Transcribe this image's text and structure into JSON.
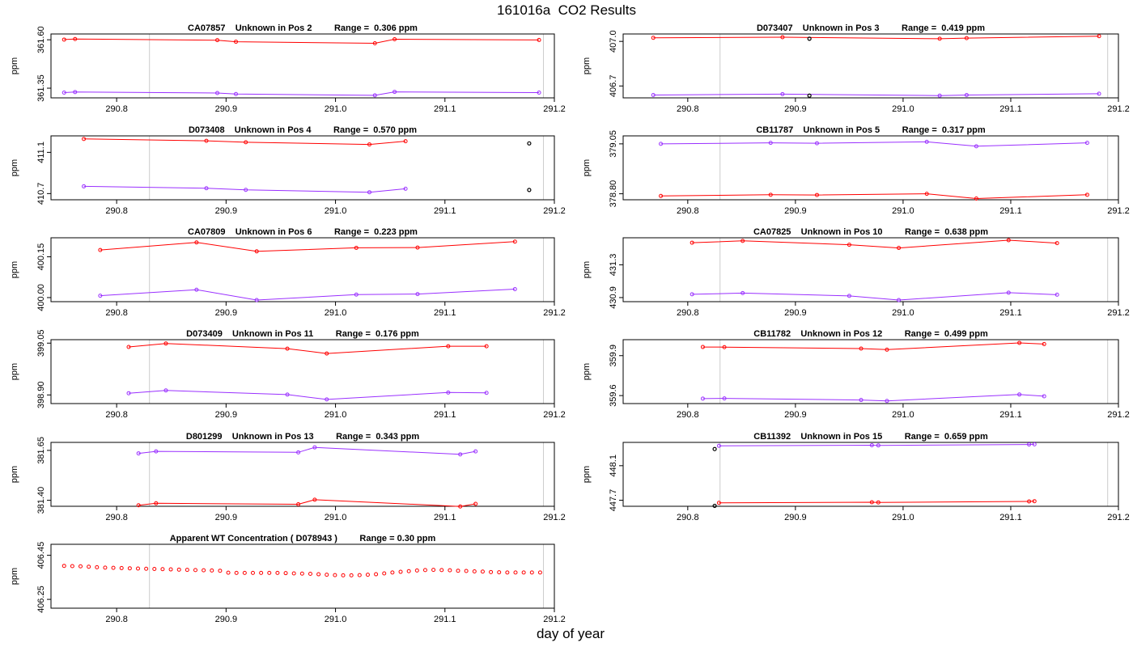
{
  "page": {
    "title": "161016a  CO2 Results",
    "xlabel": "day of year"
  },
  "colors": {
    "series_red": "#ff0000",
    "series_purple": "#9a30ff",
    "reference_line": "#cccccc",
    "outlier_point": "#000000",
    "frame": "#000000"
  },
  "chart_data": [
    {
      "type": "line",
      "title": "CA07857    Unknown in Pos 2         Range =  0.306 ppm",
      "ylabel": "ppm",
      "xlim": [
        290.74,
        291.2
      ],
      "ylim": [
        361.3,
        361.63
      ],
      "xticks": [
        "290.8",
        "290.9",
        "291.0",
        "291.1",
        "291.2"
      ],
      "yticks": [
        "361.35",
        "361.60"
      ],
      "vlines": [
        290.83,
        291.19
      ],
      "series": [
        {
          "name": "high",
          "color": "red",
          "x": [
            290.752,
            290.762,
            290.892,
            290.909,
            291.036,
            291.054,
            291.186
          ],
          "y": [
            361.601,
            361.604,
            361.598,
            361.59,
            361.582,
            361.603,
            361.599
          ]
        },
        {
          "name": "low",
          "color": "purple",
          "x": [
            290.752,
            290.762,
            290.892,
            290.909,
            291.036,
            291.054,
            291.186
          ],
          "y": [
            361.327,
            361.33,
            361.325,
            361.32,
            361.313,
            361.331,
            361.327
          ]
        }
      ],
      "outliers": []
    },
    {
      "type": "line",
      "title": "D073407    Unknown in Pos 3         Range =  0.419 ppm",
      "ylabel": "ppm",
      "xlim": [
        290.74,
        291.2
      ],
      "ylim": [
        406.62,
        407.05
      ],
      "xticks": [
        "290.8",
        "290.9",
        "291.0",
        "291.1",
        "291.2"
      ],
      "yticks": [
        "406.7",
        "407.0"
      ],
      "vlines": [
        290.83,
        291.19
      ],
      "series": [
        {
          "name": "high",
          "color": "red",
          "x": [
            290.768,
            290.888,
            291.034,
            291.059,
            291.182
          ],
          "y": [
            407.024,
            407.028,
            407.018,
            407.022,
            407.035
          ]
        },
        {
          "name": "low",
          "color": "purple",
          "x": [
            290.768,
            290.888,
            291.034,
            291.059,
            291.182
          ],
          "y": [
            406.639,
            406.645,
            406.635,
            406.639,
            406.648
          ]
        }
      ],
      "outliers": [
        {
          "x": 290.913,
          "y": 407.018
        },
        {
          "x": 290.913,
          "y": 406.635
        }
      ]
    },
    {
      "type": "line",
      "title": "D073408    Unknown in Pos 4         Range =  0.570 ppm",
      "ylabel": "ppm",
      "xlim": [
        290.74,
        291.2
      ],
      "ylim": [
        410.64,
        411.26
      ],
      "xticks": [
        "290.8",
        "290.9",
        "291.0",
        "291.1",
        "291.2"
      ],
      "yticks": [
        "410.7",
        "411.1"
      ],
      "vlines": [
        290.83,
        291.19
      ],
      "series": [
        {
          "name": "high",
          "color": "red",
          "x": [
            290.77,
            290.882,
            290.918,
            291.031,
            291.064
          ],
          "y": [
            411.23,
            411.212,
            411.198,
            411.177,
            411.208
          ]
        },
        {
          "name": "low",
          "color": "purple",
          "x": [
            290.77,
            290.882,
            290.918,
            291.031,
            291.064
          ],
          "y": [
            410.77,
            410.752,
            410.736,
            410.713,
            410.747
          ]
        }
      ],
      "outliers": [
        {
          "x": 291.177,
          "y": 411.187
        },
        {
          "x": 291.177,
          "y": 410.735
        }
      ]
    },
    {
      "type": "line",
      "title": "CB11787    Unknown in Pos 5         Range =  0.317 ppm",
      "ylabel": "ppm",
      "xlim": [
        290.74,
        291.2
      ],
      "ylim": [
        378.77,
        379.09
      ],
      "xticks": [
        "290.8",
        "290.9",
        "291.0",
        "291.1",
        "291.2"
      ],
      "yticks": [
        "378.80",
        "379.05"
      ],
      "vlines": [
        290.83,
        291.19
      ],
      "series": [
        {
          "name": "high",
          "color": "purple",
          "x": [
            290.775,
            290.877,
            290.92,
            291.022,
            291.068,
            291.171
          ],
          "y": [
            379.05,
            379.055,
            379.053,
            379.06,
            379.038,
            379.055
          ]
        },
        {
          "name": "low",
          "color": "red",
          "x": [
            290.775,
            290.877,
            290.92,
            291.022,
            291.068,
            291.171
          ],
          "y": [
            378.789,
            378.795,
            378.794,
            378.8,
            378.776,
            378.795
          ]
        }
      ],
      "outliers": []
    },
    {
      "type": "line",
      "title": "CA07809    Unknown in Pos 6         Range =  0.223 ppm",
      "ylabel": "ppm",
      "xlim": [
        290.74,
        291.2
      ],
      "ylim": [
        399.985,
        400.22
      ],
      "xticks": [
        "290.8",
        "290.9",
        "291.0",
        "291.1",
        "291.2"
      ],
      "yticks": [
        "400.00",
        "400.15"
      ],
      "vlines": [
        290.83,
        291.19
      ],
      "series": [
        {
          "name": "high",
          "color": "red",
          "x": [
            290.785,
            290.873,
            290.928,
            291.019,
            291.075,
            291.164
          ],
          "y": [
            400.175,
            400.203,
            400.17,
            400.183,
            400.184,
            400.206
          ]
        },
        {
          "name": "low",
          "color": "purple",
          "x": [
            290.785,
            290.873,
            290.928,
            291.019,
            291.075,
            291.164
          ],
          "y": [
            400.007,
            400.029,
            399.991,
            400.011,
            400.013,
            400.031
          ]
        }
      ],
      "outliers": []
    },
    {
      "type": "line",
      "title": "CA07825    Unknown in Pos 10         Range =  0.638 ppm",
      "ylabel": "ppm",
      "xlim": [
        290.74,
        291.2
      ],
      "ylim": [
        430.85,
        431.63
      ],
      "xticks": [
        "290.8",
        "290.9",
        "291.0",
        "291.1",
        "291.2"
      ],
      "yticks": [
        "430.9",
        "431.3"
      ],
      "vlines": [
        290.83,
        291.19
      ],
      "series": [
        {
          "name": "high",
          "color": "red",
          "x": [
            290.804,
            290.851,
            290.95,
            290.996,
            291.098,
            291.143
          ],
          "y": [
            431.57,
            431.592,
            431.545,
            431.506,
            431.6,
            431.565
          ]
        },
        {
          "name": "low",
          "color": "purple",
          "x": [
            290.804,
            290.851,
            290.95,
            290.996,
            291.098,
            291.143
          ],
          "y": [
            430.94,
            430.955,
            430.92,
            430.87,
            430.96,
            430.935
          ]
        }
      ],
      "outliers": []
    },
    {
      "type": "line",
      "title": "D073409    Unknown in Pos 11         Range =  0.176 ppm",
      "ylabel": "ppm",
      "xlim": [
        290.74,
        291.2
      ],
      "ylim": [
        398.875,
        399.06
      ],
      "xticks": [
        "290.8",
        "290.9",
        "291.0",
        "291.1",
        "291.2"
      ],
      "yticks": [
        "398.90",
        "399.05"
      ],
      "vlines": [
        290.83,
        291.19
      ],
      "series": [
        {
          "name": "high",
          "color": "red",
          "x": [
            290.811,
            290.845,
            290.956,
            290.992,
            291.103,
            291.138
          ],
          "y": [
            399.039,
            399.049,
            399.034,
            399.02,
            399.041,
            399.041
          ]
        },
        {
          "name": "low",
          "color": "purple",
          "x": [
            290.811,
            290.845,
            290.956,
            290.992,
            291.103,
            291.138
          ],
          "y": [
            398.905,
            398.913,
            398.901,
            398.887,
            398.907,
            398.906
          ]
        }
      ],
      "outliers": []
    },
    {
      "type": "line",
      "title": "CB11782    Unknown in Pos 12         Range =  0.499 ppm",
      "ylabel": "ppm",
      "xlim": [
        290.74,
        291.2
      ],
      "ylim": [
        359.54,
        360.02
      ],
      "xticks": [
        "290.8",
        "290.9",
        "291.0",
        "291.1",
        "291.2"
      ],
      "yticks": [
        "359.6",
        "359.9"
      ],
      "vlines": [
        290.83,
        291.19
      ],
      "series": [
        {
          "name": "high",
          "color": "red",
          "x": [
            290.814,
            290.834,
            290.961,
            290.985,
            291.108,
            291.131
          ],
          "y": [
            359.965,
            359.964,
            359.953,
            359.945,
            359.996,
            359.987
          ]
        },
        {
          "name": "low",
          "color": "purple",
          "x": [
            290.814,
            290.834,
            290.961,
            290.985,
            291.108,
            291.131
          ],
          "y": [
            359.577,
            359.579,
            359.567,
            359.56,
            359.608,
            359.595
          ]
        }
      ],
      "outliers": []
    },
    {
      "type": "line",
      "title": "D801299    Unknown in Pos 13         Range =  0.343 ppm",
      "ylabel": "ppm",
      "xlim": [
        290.74,
        291.2
      ],
      "ylim": [
        381.37,
        381.69
      ],
      "xticks": [
        "290.8",
        "290.9",
        "291.0",
        "291.1",
        "291.2"
      ],
      "yticks": [
        "381.40",
        "381.65"
      ],
      "vlines": [
        290.83,
        291.19
      ],
      "series": [
        {
          "name": "high",
          "color": "purple",
          "x": [
            290.82,
            290.836,
            290.966,
            290.981,
            291.114,
            291.128
          ],
          "y": [
            381.635,
            381.645,
            381.64,
            381.665,
            381.63,
            381.645
          ]
        },
        {
          "name": "low",
          "color": "red",
          "x": [
            290.82,
            290.836,
            290.966,
            290.981,
            291.114,
            291.128
          ],
          "y": [
            381.375,
            381.385,
            381.38,
            381.403,
            381.369,
            381.382
          ]
        }
      ],
      "outliers": []
    },
    {
      "type": "line",
      "title": "CB11392    Unknown in Pos 15         Range =  0.659 ppm",
      "ylabel": "ppm",
      "xlim": [
        290.74,
        291.2
      ],
      "ylim": [
        447.63,
        448.37
      ],
      "xticks": [
        "290.8",
        "290.9",
        "291.0",
        "291.1",
        "291.2"
      ],
      "yticks": [
        "447.7",
        "448.1"
      ],
      "vlines": [
        290.83,
        291.19
      ],
      "series": [
        {
          "name": "high",
          "color": "purple",
          "x": [
            290.829,
            290.971,
            290.977,
            291.117,
            291.122
          ],
          "y": [
            448.33,
            448.337,
            448.335,
            448.346,
            448.348
          ]
        },
        {
          "name": "low",
          "color": "red",
          "x": [
            290.829,
            290.971,
            290.977,
            291.117,
            291.122
          ],
          "y": [
            447.67,
            447.677,
            447.675,
            447.686,
            447.689
          ]
        }
      ],
      "outliers": [
        {
          "x": 290.825,
          "y": 448.293
        },
        {
          "x": 290.825,
          "y": 447.635
        }
      ]
    },
    {
      "type": "scatter",
      "title": "Apparent WT Concentration ( D078943 )         Range = 0.30 ppm",
      "ylabel": "ppm",
      "xlim": [
        290.74,
        291.2
      ],
      "ylim": [
        406.21,
        406.5
      ],
      "xticks": [
        "290.8",
        "290.9",
        "291.0",
        "291.1",
        "291.2"
      ],
      "yticks": [
        "406.25",
        "406.45"
      ],
      "vlines": [
        290.83,
        291.19
      ],
      "series": [
        {
          "name": "wt",
          "color": "red",
          "x": [
            290.752,
            290.7595,
            290.767,
            290.7745,
            290.782,
            290.7895,
            290.797,
            290.8045,
            290.812,
            290.8195,
            290.827,
            290.8345,
            290.842,
            290.8495,
            290.857,
            290.8645,
            290.872,
            290.8795,
            290.887,
            290.8945,
            290.902,
            290.9095,
            290.917,
            290.9245,
            290.932,
            290.9395,
            290.947,
            290.9545,
            290.962,
            290.9695,
            290.977,
            290.9845,
            290.992,
            290.9995,
            291.007,
            291.0145,
            291.022,
            291.0295,
            291.037,
            291.0445,
            291.052,
            291.0595,
            291.067,
            291.0745,
            291.082,
            291.0895,
            291.097,
            291.1045,
            291.112,
            291.1195,
            291.127,
            291.1345,
            291.142,
            291.1495,
            291.157,
            291.1645,
            291.172,
            291.1795,
            291.187
          ],
          "y": [
            406.402,
            406.401,
            406.4,
            406.398,
            406.396,
            406.394,
            406.393,
            406.392,
            406.391,
            406.39,
            406.389,
            406.388,
            406.387,
            406.386,
            406.385,
            406.384,
            406.383,
            406.382,
            406.381,
            406.38,
            406.371,
            406.37,
            406.37,
            406.37,
            406.37,
            406.37,
            406.37,
            406.369,
            406.368,
            406.367,
            406.366,
            406.364,
            406.362,
            406.36,
            406.359,
            406.359,
            406.36,
            406.362,
            406.364,
            406.368,
            406.372,
            406.375,
            406.378,
            406.381,
            406.383,
            406.384,
            406.383,
            406.382,
            406.38,
            406.379,
            406.377,
            406.376,
            406.374,
            406.373,
            406.372,
            406.372,
            406.372,
            406.372,
            406.372
          ]
        }
      ],
      "outliers": []
    }
  ]
}
